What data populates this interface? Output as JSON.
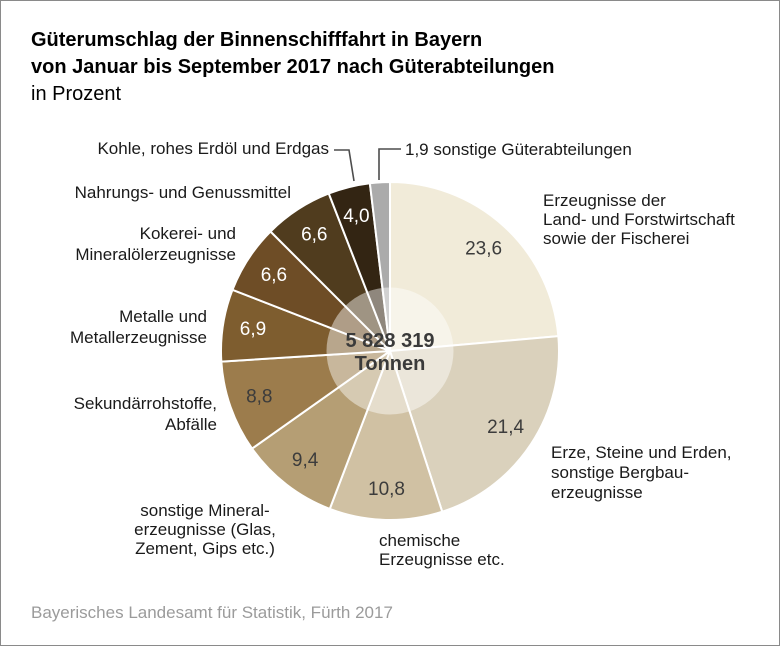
{
  "header": {
    "title_line1": "Güterumschlag der Binnenschifffahrt in Bayern",
    "title_line2": "von Januar bis September 2017 nach Güterabteilungen",
    "subtitle": "in Prozent"
  },
  "footer": {
    "source": "Bayerisches Landesamt für Statistik, Fürth 2017"
  },
  "outside_labels": {
    "kohle": "Kohle, rohes Erdöl und Erdgas",
    "sonstige": "1,9 sonstige Güterabteilungen",
    "nahrungs": "Nahrungs- und Genussmittel",
    "kokerei": "Kokerei- und\nMineralölerzeugnisse",
    "metalle": "Metalle und\nMetallerzeugnisse",
    "sekundaer": "Sekundärrohstoffe,\nAbfälle",
    "mineral": "sonstige Mineral-\nerzeugnisse (Glas,\nZement, Gips etc.)",
    "chemische": "chemische\nErzeugnisse etc.",
    "erzeugnisse": "Erzeugnisse der\nLand- und Forstwirtschaft\nsowie der Fischerei",
    "erze": "Erze, Steine und Erden,\nsonstige Bergbau-\nerzeugnisse"
  },
  "chart_data": {
    "type": "pie",
    "title": "Güterumschlag der Binnenschifffahrt in Bayern von Januar bis September 2017 nach Güterabteilungen",
    "unit": "Prozent",
    "total_value": "5 828 319",
    "total_unit": "Tonnen",
    "start_angle_deg": 0,
    "direction": "clockwise",
    "inner_overlay": true,
    "slice_border_color": "#ffffff",
    "value_text_dark": "#3c3c3c",
    "value_text_light": "#ffffff",
    "segments": [
      {
        "label": "Erzeugnisse der Land- und Forstwirtschaft sowie der Fischerei",
        "value": 23.6,
        "display_value": "23,6",
        "color": "#f1ebd9",
        "value_inside": true
      },
      {
        "label": "Erze, Steine und Erden, sonstige Bergbauerzeugnisse",
        "value": 21.4,
        "display_value": "21,4",
        "color": "#dad1bc",
        "value_inside": true
      },
      {
        "label": "chemische Erzeugnisse etc.",
        "value": 10.8,
        "display_value": "10,8",
        "color": "#d0c1a3",
        "value_inside": true
      },
      {
        "label": "sonstige Mineralerzeugnisse (Glas, Zement, Gips etc.)",
        "value": 9.4,
        "display_value": "9,4",
        "color": "#b59e74",
        "value_inside": true
      },
      {
        "label": "Sekundärrohstoffe, Abfälle",
        "value": 8.8,
        "display_value": "8,8",
        "color": "#9c7c4c",
        "value_inside": true
      },
      {
        "label": "Metalle und Metallerzeugnisse",
        "value": 6.9,
        "display_value": "6,9",
        "color": "#7e5d2f",
        "value_inside": true
      },
      {
        "label": "Kokerei- und Mineralölerzeugnisse",
        "value": 6.6,
        "display_value": "6,6",
        "color": "#6e4d26",
        "value_inside": true
      },
      {
        "label": "Nahrungs- und Genussmittel",
        "value": 6.6,
        "display_value": "6,6",
        "color": "#503c1e",
        "value_inside": true
      },
      {
        "label": "Kohle, rohes Erdöl und Erdgas",
        "value": 4.0,
        "display_value": "4,0",
        "color": "#332513",
        "value_inside": true
      },
      {
        "label": "sonstige Güterabteilungen",
        "value": 1.9,
        "display_value": "1,9",
        "color": "#ababab",
        "value_inside": false
      }
    ]
  }
}
